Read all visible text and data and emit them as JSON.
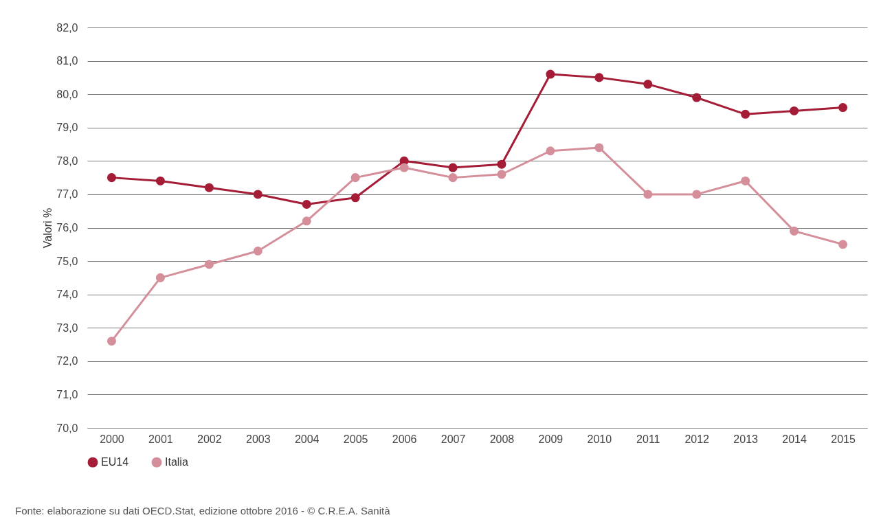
{
  "chart_data": {
    "type": "line",
    "ylabel": "Valori %",
    "categories": [
      "2000",
      "2001",
      "2002",
      "2003",
      "2004",
      "2005",
      "2006",
      "2007",
      "2008",
      "2009",
      "2010",
      "2011",
      "2012",
      "2013",
      "2014",
      "2015"
    ],
    "series": [
      {
        "name": "EU14",
        "color": "#a51c36",
        "values": [
          77.5,
          77.4,
          77.2,
          77.0,
          76.7,
          76.9,
          78.0,
          77.8,
          77.9,
          80.6,
          80.5,
          80.3,
          79.9,
          79.4,
          79.5,
          79.6
        ]
      },
      {
        "name": "Italia",
        "color": "#d48f9b",
        "values": [
          72.6,
          74.5,
          74.9,
          75.3,
          76.2,
          77.5,
          77.8,
          77.5,
          77.6,
          78.3,
          78.4,
          77.0,
          77.0,
          77.4,
          75.9,
          75.5
        ]
      }
    ],
    "ylim": [
      70,
      82
    ],
    "yticks": [
      {
        "value": 70,
        "label": "70,0"
      },
      {
        "value": 71,
        "label": "71,0"
      },
      {
        "value": 72,
        "label": "72,0"
      },
      {
        "value": 73,
        "label": "73,0"
      },
      {
        "value": 74,
        "label": "74,0"
      },
      {
        "value": 75,
        "label": "75,0"
      },
      {
        "value": 76,
        "label": "76,0"
      },
      {
        "value": 77,
        "label": "77,0"
      },
      {
        "value": 78,
        "label": "78,0"
      },
      {
        "value": 79,
        "label": "79,0"
      },
      {
        "value": 80,
        "label": "80,0"
      },
      {
        "value": 81,
        "label": "81,0"
      },
      {
        "value": 82,
        "label": "82,0"
      }
    ],
    "grid": "y",
    "legend": "bottom",
    "marker": "circle",
    "line_style": "solid",
    "annotations": [
      "Fonte: elaborazione su dati OECD.Stat, edizione ottobre 2016 - © C.R.E.A. Sanità"
    ]
  }
}
